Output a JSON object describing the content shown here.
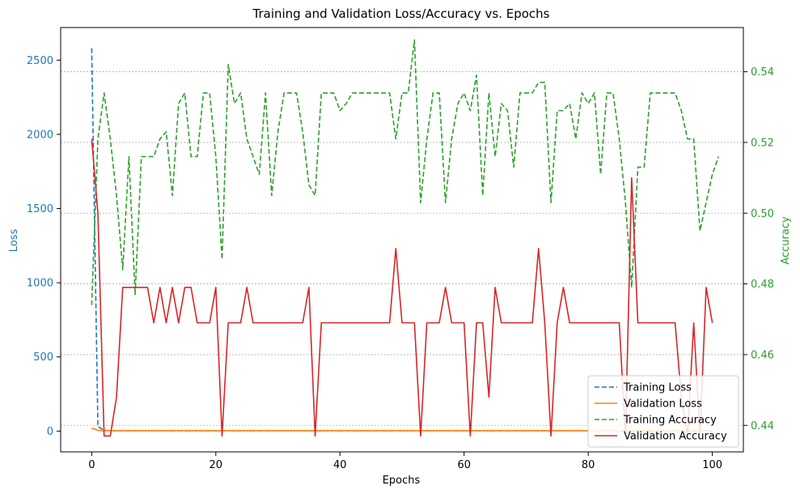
{
  "chart_data": {
    "type": "line",
    "title": "Training and Validation Loss/Accuracy vs. Epochs",
    "xlabel": "Epochs",
    "ylabel_left": "Loss",
    "ylabel_right": "Accuracy",
    "xlim": [
      -5,
      105
    ],
    "ylim_left": [
      -140,
      2720
    ],
    "ylim_right": [
      0.4325,
      0.5525
    ],
    "x_ticks": [
      0,
      20,
      40,
      60,
      80,
      100
    ],
    "y_ticks_left": [
      0,
      500,
      1000,
      1500,
      2000,
      2500
    ],
    "y_ticks_right": [
      0.44,
      0.46,
      0.48,
      0.5,
      0.52,
      0.54
    ],
    "grid": "horizontal-dotted (right axis)",
    "legend_position": "lower-right",
    "colors": {
      "loss_axis": "#1f77b4",
      "accuracy_axis": "#2ca02c",
      "training_loss": "#1f77b4",
      "validation_loss": "#ff7f0e",
      "training_accuracy": "#2ca02c",
      "validation_accuracy": "#d62728"
    },
    "series": [
      {
        "name": "Training Loss",
        "axis": "left",
        "style": "dashed",
        "color": "#1f77b4",
        "x": [
          0,
          1,
          2,
          3,
          5,
          10,
          20,
          30,
          40,
          50,
          60,
          70,
          80,
          90,
          100
        ],
        "values": [
          2580,
          30,
          5,
          3,
          3,
          3,
          3,
          3,
          3,
          3,
          3,
          3,
          3,
          3,
          3
        ]
      },
      {
        "name": "Validation Loss",
        "axis": "left",
        "style": "solid",
        "color": "#ff7f0e",
        "x": [
          0,
          1,
          2,
          5,
          10,
          20,
          30,
          40,
          50,
          60,
          70,
          80,
          90,
          100
        ],
        "values": [
          20,
          5,
          3,
          3,
          3,
          3,
          3,
          3,
          3,
          3,
          3,
          3,
          3,
          3
        ]
      },
      {
        "name": "Training Accuracy",
        "axis": "right",
        "style": "dashed",
        "color": "#2ca02c",
        "values": [
          0.474,
          0.521,
          0.534,
          0.521,
          0.505,
          0.484,
          0.516,
          0.477,
          0.516,
          0.516,
          0.516,
          0.521,
          0.523,
          0.505,
          0.531,
          0.534,
          0.516,
          0.516,
          0.534,
          0.534,
          0.516,
          0.487,
          0.542,
          0.531,
          0.534,
          0.521,
          0.516,
          0.511,
          0.534,
          0.505,
          0.523,
          0.534,
          0.534,
          0.534,
          0.523,
          0.508,
          0.505,
          0.534,
          0.534,
          0.534,
          0.529,
          0.531,
          0.534,
          0.534,
          0.534,
          0.534,
          0.534,
          0.534,
          0.534,
          0.521,
          0.534,
          0.534,
          0.549,
          0.503,
          0.521,
          0.534,
          0.534,
          0.503,
          0.521,
          0.531,
          0.534,
          0.529,
          0.539,
          0.505,
          0.534,
          0.516,
          0.531,
          0.529,
          0.513,
          0.534,
          0.534,
          0.534,
          0.537,
          0.537,
          0.503,
          0.529,
          0.529,
          0.531,
          0.521,
          0.534,
          0.531,
          0.534,
          0.511,
          0.534,
          0.534,
          0.521,
          0.503,
          0.479,
          0.513,
          0.513,
          0.534,
          0.534,
          0.534,
          0.534,
          0.534,
          0.529,
          0.521,
          0.521,
          0.495,
          0.503,
          0.511,
          0.516
        ]
      },
      {
        "name": "Validation Accuracy",
        "axis": "right",
        "style": "solid",
        "color": "#d62728",
        "values": [
          0.521,
          0.5,
          0.437,
          0.437,
          0.448,
          0.479,
          0.479,
          0.479,
          0.479,
          0.479,
          0.469,
          0.479,
          0.469,
          0.479,
          0.469,
          0.479,
          0.479,
          0.469,
          0.469,
          0.469,
          0.479,
          0.437,
          0.469,
          0.469,
          0.469,
          0.479,
          0.469,
          0.469,
          0.469,
          0.469,
          0.469,
          0.469,
          0.469,
          0.469,
          0.469,
          0.479,
          0.437,
          0.469,
          0.469,
          0.469,
          0.469,
          0.469,
          0.469,
          0.469,
          0.469,
          0.469,
          0.469,
          0.469,
          0.469,
          0.49,
          0.469,
          0.469,
          0.469,
          0.437,
          0.469,
          0.469,
          0.469,
          0.479,
          0.469,
          0.469,
          0.469,
          0.437,
          0.469,
          0.469,
          0.448,
          0.479,
          0.469,
          0.469,
          0.469,
          0.469,
          0.469,
          0.469,
          0.49,
          0.469,
          0.437,
          0.469,
          0.479,
          0.469,
          0.469,
          0.469,
          0.469,
          0.469,
          0.469,
          0.469,
          0.469,
          0.469,
          0.437,
          0.51,
          0.469,
          0.469,
          0.469,
          0.469,
          0.469,
          0.469,
          0.469,
          0.448,
          0.437,
          0.469,
          0.437,
          0.479,
          0.469
        ]
      }
    ]
  }
}
